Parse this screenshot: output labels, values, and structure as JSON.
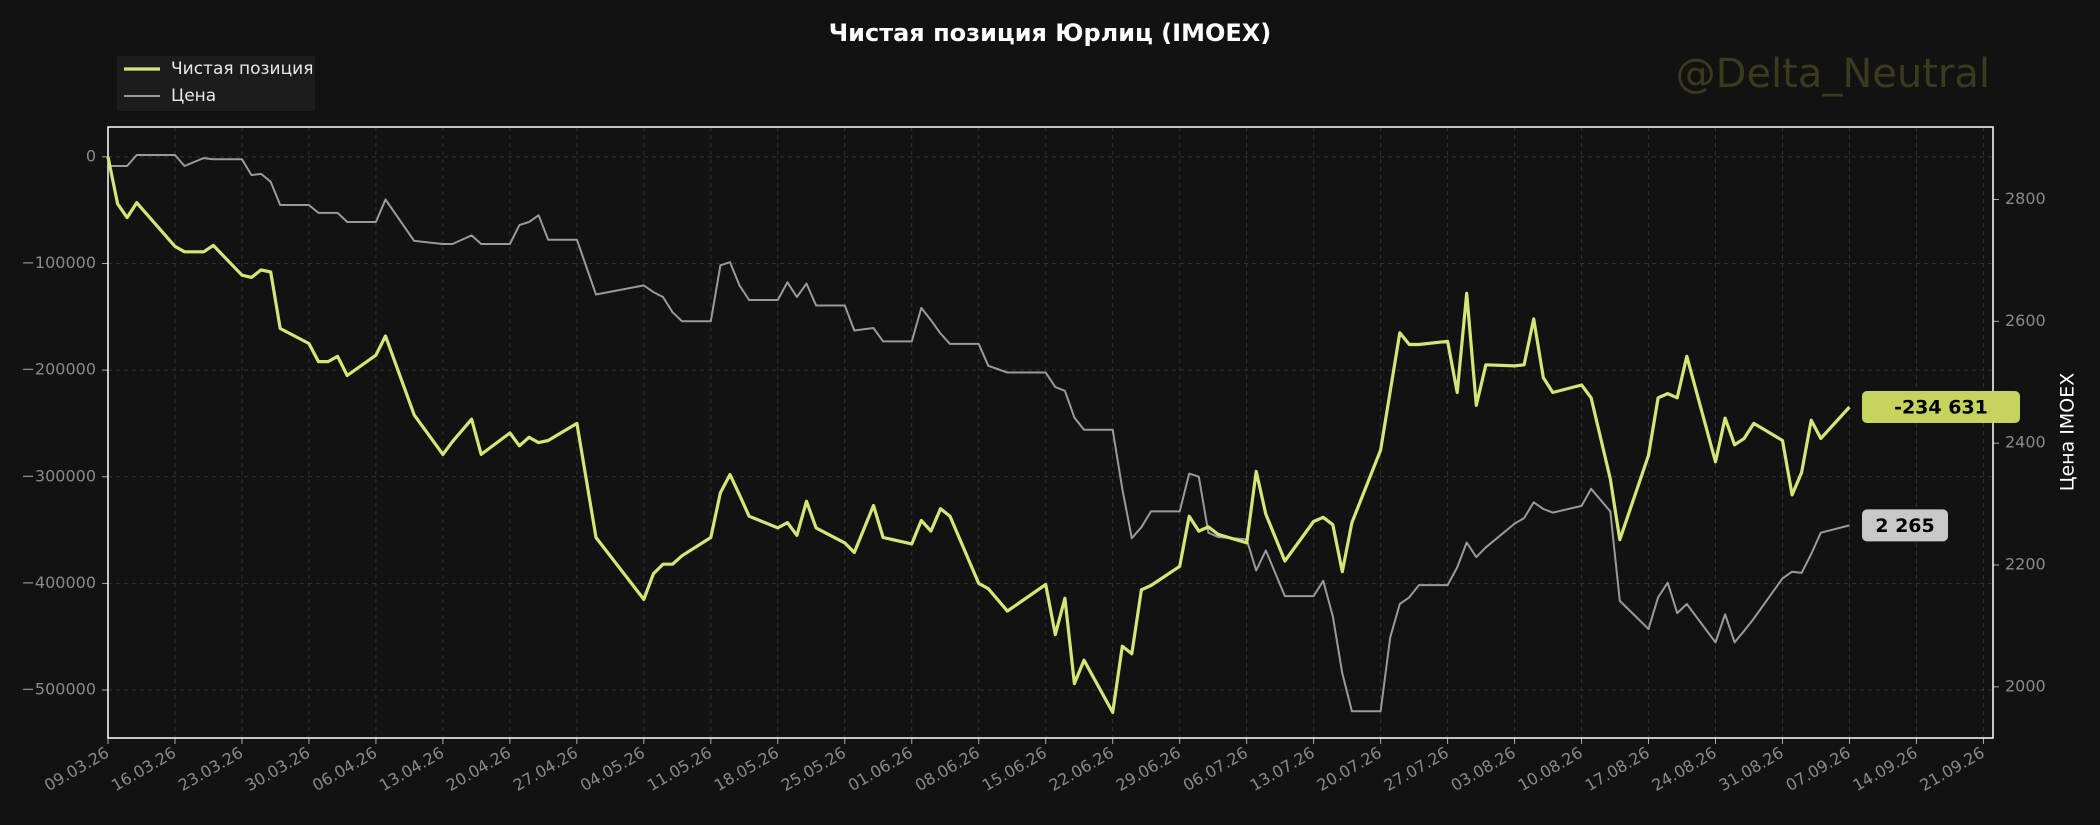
{
  "chart_data": {
    "type": "line",
    "title": "Чистая позиция Юрлиц (IMOEX)",
    "watermark": "@Delta_Neutral",
    "y2label": "Цена IMOEX",
    "grid": true,
    "legend": "upper left",
    "x": [
      "2026-03-09",
      "2026-03-10",
      "2026-03-11",
      "2026-03-12",
      "2026-03-16",
      "2026-03-17",
      "2026-03-19",
      "2026-03-20",
      "2026-03-23",
      "2026-03-24",
      "2026-03-25",
      "2026-03-26",
      "2026-03-27",
      "2026-03-30",
      "2026-03-31",
      "2026-04-01",
      "2026-04-02",
      "2026-04-03",
      "2026-04-06",
      "2026-04-07",
      "2026-04-10",
      "2026-04-13",
      "2026-04-14",
      "2026-04-16",
      "2026-04-17",
      "2026-04-20",
      "2026-04-21",
      "2026-04-22",
      "2026-04-23",
      "2026-04-24",
      "2026-04-27",
      "2026-04-29",
      "2026-05-04",
      "2026-05-05",
      "2026-05-06",
      "2026-05-07",
      "2026-05-08",
      "2026-05-11",
      "2026-05-12",
      "2026-05-13",
      "2026-05-14",
      "2026-05-15",
      "2026-05-18",
      "2026-05-19",
      "2026-05-20",
      "2026-05-21",
      "2026-05-22",
      "2026-05-25",
      "2026-05-26",
      "2026-05-28",
      "2026-05-29",
      "2026-06-01",
      "2026-06-02",
      "2026-06-03",
      "2026-06-04",
      "2026-06-05",
      "2026-06-08",
      "2026-06-09",
      "2026-06-11",
      "2026-06-15",
      "2026-06-16",
      "2026-06-17",
      "2026-06-18",
      "2026-06-19",
      "2026-06-22",
      "2026-06-23",
      "2026-06-24",
      "2026-06-25",
      "2026-06-26",
      "2026-06-29",
      "2026-06-30",
      "2026-07-01",
      "2026-07-02",
      "2026-07-03",
      "2026-07-06",
      "2026-07-07",
      "2026-07-08",
      "2026-07-10",
      "2026-07-13",
      "2026-07-14",
      "2026-07-15",
      "2026-07-16",
      "2026-07-17",
      "2026-07-20",
      "2026-07-21",
      "2026-07-22",
      "2026-07-23",
      "2026-07-24",
      "2026-07-27",
      "2026-07-28",
      "2026-07-29",
      "2026-07-30",
      "2026-07-31",
      "2026-08-03",
      "2026-08-04",
      "2026-08-05",
      "2026-08-06",
      "2026-08-07",
      "2026-08-10",
      "2026-08-11",
      "2026-08-13",
      "2026-08-14",
      "2026-08-17",
      "2026-08-18",
      "2026-08-19",
      "2026-08-20",
      "2026-08-21",
      "2026-08-24",
      "2026-08-25",
      "2026-08-26",
      "2026-08-27",
      "2026-08-28",
      "2026-08-31",
      "2026-09-01",
      "2026-09-02",
      "2026-09-03",
      "2026-09-04",
      "2026-09-07"
    ],
    "series": [
      {
        "name": "Чистая позиция",
        "color": "#d4e677",
        "end_label": "-234 631",
        "values": [
          0,
          -44000,
          -57000,
          -43000,
          -84000,
          -89000,
          -89000,
          -83000,
          -111000,
          -113000,
          -106000,
          -108000,
          -161000,
          -175000,
          -192000,
          -192000,
          -187000,
          -205000,
          -186000,
          -168000,
          -242000,
          -279000,
          -267000,
          -246000,
          -279000,
          -259000,
          -271000,
          -263000,
          -268000,
          -266000,
          -250000,
          -357000,
          -415000,
          -391000,
          -382000,
          -382000,
          -374000,
          -357000,
          -315000,
          -298000,
          -317000,
          -337000,
          -348000,
          -343000,
          -355000,
          -323000,
          -348000,
          -362000,
          -371000,
          -327000,
          -357000,
          -363000,
          -341000,
          -351000,
          -330000,
          -337000,
          -400000,
          -405000,
          -426000,
          -401000,
          -448000,
          -414000,
          -494000,
          -472000,
          -521000,
          -459000,
          -466000,
          -406000,
          -402000,
          -384000,
          -337000,
          -351000,
          -347000,
          -354000,
          -362000,
          -295000,
          -335000,
          -379000,
          -342000,
          -338000,
          -345000,
          -389000,
          -343000,
          -275000,
          -220000,
          -165000,
          -176000,
          -176000,
          -173000,
          -221000,
          -128000,
          -233000,
          -195000,
          -196000,
          -195000,
          -152000,
          -207000,
          -221000,
          -214000,
          -226000,
          -302000,
          -359000,
          -280000,
          -226000,
          -222000,
          -226000,
          -187000,
          -286000,
          -245000,
          -270000,
          -264000,
          -250000,
          -266000,
          -317000,
          -296000,
          -247000,
          -264000,
          -234631
        ]
      },
      {
        "name": "Цена",
        "color": "#9a9a9a",
        "axis": "y2",
        "end_label": "2 265",
        "values": [
          2855,
          2855,
          2855,
          2873,
          2873,
          2855,
          2868,
          2866,
          2866,
          2840,
          2842,
          2829,
          2791,
          2791,
          2778,
          2778,
          2778,
          2763,
          2763,
          2800,
          2732,
          2727,
          2727,
          2741,
          2727,
          2727,
          2758,
          2763,
          2774,
          2734,
          2734,
          2644,
          2659,
          2648,
          2640,
          2615,
          2600,
          2600,
          2692,
          2697,
          2659,
          2635,
          2635,
          2664,
          2640,
          2662,
          2626,
          2626,
          2585,
          2589,
          2567,
          2567,
          2622,
          2602,
          2580,
          2563,
          2563,
          2527,
          2516,
          2516,
          2492,
          2486,
          2442,
          2422,
          2422,
          2325,
          2244,
          2262,
          2288,
          2288,
          2350,
          2345,
          2253,
          2246,
          2242,
          2191,
          2224,
          2149,
          2149,
          2174,
          2116,
          2022,
          1960,
          1960,
          2081,
          2136,
          2147,
          2167,
          2167,
          2196,
          2237,
          2213,
          2229,
          2268,
          2277,
          2303,
          2292,
          2286,
          2297,
          2325,
          2288,
          2141,
          2095,
          2147,
          2171,
          2121,
          2136,
          2073,
          2119,
          2073,
          2092,
          2112,
          2178,
          2189,
          2187,
          2218,
          2253,
          2265
        ]
      }
    ],
    "xlim": [
      "2026-03-09",
      "2026-09-22"
    ],
    "xticks": [
      {
        "value": "2026-03-09",
        "label": "09.03.26"
      },
      {
        "value": "2026-03-16",
        "label": "16.03.26"
      },
      {
        "value": "2026-03-23",
        "label": "23.03.26"
      },
      {
        "value": "2026-03-30",
        "label": "30.03.26"
      },
      {
        "value": "2026-04-06",
        "label": "06.04.26"
      },
      {
        "value": "2026-04-13",
        "label": "13.04.26"
      },
      {
        "value": "2026-04-20",
        "label": "20.04.26"
      },
      {
        "value": "2026-04-27",
        "label": "27.04.26"
      },
      {
        "value": "2026-05-04",
        "label": "04.05.26"
      },
      {
        "value": "2026-05-11",
        "label": "11.05.26"
      },
      {
        "value": "2026-05-18",
        "label": "18.05.26"
      },
      {
        "value": "2026-05-25",
        "label": "25.05.26"
      },
      {
        "value": "2026-06-01",
        "label": "01.06.26"
      },
      {
        "value": "2026-06-08",
        "label": "08.06.26"
      },
      {
        "value": "2026-06-15",
        "label": "15.06.26"
      },
      {
        "value": "2026-06-22",
        "label": "22.06.26"
      },
      {
        "value": "2026-06-29",
        "label": "29.06.26"
      },
      {
        "value": "2026-07-06",
        "label": "06.07.26"
      },
      {
        "value": "2026-07-13",
        "label": "13.07.26"
      },
      {
        "value": "2026-07-20",
        "label": "20.07.26"
      },
      {
        "value": "2026-07-27",
        "label": "27.07.26"
      },
      {
        "value": "2026-08-03",
        "label": "03.08.26"
      },
      {
        "value": "2026-08-10",
        "label": "10.08.26"
      },
      {
        "value": "2026-08-17",
        "label": "17.08.26"
      },
      {
        "value": "2026-08-24",
        "label": "24.08.26"
      },
      {
        "value": "2026-08-31",
        "label": "31.08.26"
      },
      {
        "value": "2026-09-07",
        "label": "07.09.26"
      },
      {
        "value": "2026-09-14",
        "label": "14.09.26"
      },
      {
        "value": "2026-09-21",
        "label": "21.09.26"
      }
    ],
    "ylim": [
      -545000,
      28000
    ],
    "yticks": [
      0,
      {
        "value": -100000,
        "label": "−100000"
      },
      {
        "value": -200000,
        "label": "−200000"
      },
      {
        "value": -300000,
        "label": "−300000"
      },
      {
        "value": -400000,
        "label": "−400000"
      },
      {
        "value": -500000,
        "label": "−500000"
      }
    ],
    "y2lim": [
      1916,
      2919
    ],
    "y2ticks": [
      2000,
      2200,
      2400,
      2600,
      2800
    ]
  }
}
